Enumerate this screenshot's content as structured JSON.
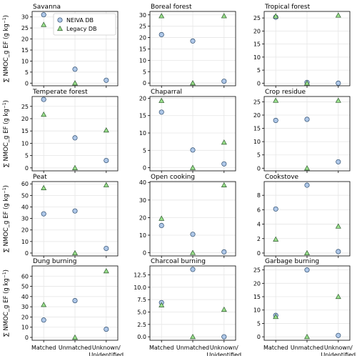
{
  "figure": {
    "ylabel_left": "∑ NMOC_g EF (g kg",
    "ylabel_sup": "−1",
    "ylabel_right": ")",
    "legend": [
      {
        "label": "NEIVA DB",
        "marker": "circle",
        "color": "#aec7e8"
      },
      {
        "label": "Legacy DB",
        "marker": "triangle",
        "color": "#98df8a"
      }
    ],
    "x_tick_labels": [
      "Matched",
      "Unmatched",
      "Unknown/\nUnidentified"
    ]
  },
  "chart_data": [
    {
      "type": "scatter",
      "title": "Savanna",
      "categories": [
        "Matched",
        "Unmatched",
        "Unknown/\nUnidentified"
      ],
      "ylim": [
        -1.2,
        32.5
      ],
      "yticks": [
        0,
        5,
        10,
        15,
        20,
        25,
        30
      ],
      "series": [
        {
          "name": "NEIVA DB",
          "values": [
            31.0,
            6.3,
            1.3
          ]
        },
        {
          "name": "Legacy DB",
          "values": [
            26.5,
            0,
            null
          ]
        }
      ],
      "grid": true
    },
    {
      "type": "scatter",
      "title": "Boreal forest",
      "categories": [
        "Matched",
        "Unmatched",
        "Unknown/\nUnidentified"
      ],
      "ylim": [
        -1.2,
        31.5
      ],
      "yticks": [
        0,
        5,
        10,
        15,
        20,
        25,
        30
      ],
      "series": [
        {
          "name": "NEIVA DB",
          "values": [
            21.3,
            18.5,
            0.8
          ]
        },
        {
          "name": "Legacy DB",
          "values": [
            29.5,
            0,
            29.5
          ]
        }
      ],
      "grid": true
    },
    {
      "type": "scatter",
      "title": "Tropical forest",
      "categories": [
        "Matched",
        "Unmatched",
        "Unknown/\nUnidentified"
      ],
      "ylim": [
        -1.0,
        27.5
      ],
      "yticks": [
        0,
        5,
        10,
        15,
        20,
        25
      ],
      "series": [
        {
          "name": "NEIVA DB",
          "values": [
            25.3,
            0.3,
            0
          ]
        },
        {
          "name": "Legacy DB",
          "values": [
            25.7,
            0,
            26
          ]
        }
      ],
      "grid": true
    },
    {
      "type": "scatter",
      "title": "Temperate forest",
      "categories": [
        "Matched",
        "Unmatched",
        "Unknown/\nUnidentified"
      ],
      "ylim": [
        -1.2,
        29.0
      ],
      "yticks": [
        0,
        5,
        10,
        15,
        20,
        25
      ],
      "series": [
        {
          "name": "NEIVA DB",
          "values": [
            27.8,
            12.2,
            3.0
          ]
        },
        {
          "name": "Legacy DB",
          "values": [
            21.7,
            0,
            15.3
          ]
        }
      ],
      "grid": true
    },
    {
      "type": "scatter",
      "title": "Chaparral",
      "categories": [
        "Matched",
        "Unmatched",
        "Unknown/\nUnidentified"
      ],
      "ylim": [
        -0.9,
        20.5
      ],
      "yticks": [
        0,
        5,
        10,
        15,
        20
      ],
      "series": [
        {
          "name": "NEIVA DB",
          "values": [
            16.0,
            5.1,
            1.1
          ]
        },
        {
          "name": "Legacy DB",
          "values": [
            19.3,
            0,
            7.3
          ]
        }
      ],
      "grid": true
    },
    {
      "type": "scatter",
      "title": "Crop residue",
      "categories": [
        "Matched",
        "Unmatched",
        "Unknown/\nUnidentified"
      ],
      "ylim": [
        -1.0,
        27.0
      ],
      "yticks": [
        0,
        5,
        10,
        15,
        20,
        25
      ],
      "series": [
        {
          "name": "NEIVA DB",
          "values": [
            18.0,
            18.4,
            2.4
          ]
        },
        {
          "name": "Legacy DB",
          "values": [
            25.5,
            0,
            25.5
          ]
        }
      ],
      "grid": true
    },
    {
      "type": "scatter",
      "title": "Peat",
      "categories": [
        "Matched",
        "Unmatched",
        "Unknown/\nUnidentified"
      ],
      "ylim": [
        -2.5,
        62.0
      ],
      "yticks": [
        0,
        10,
        20,
        30,
        40,
        50,
        60
      ],
      "series": [
        {
          "name": "NEIVA DB",
          "values": [
            34.0,
            36.5,
            4.0
          ]
        },
        {
          "name": "Legacy DB",
          "values": [
            56.5,
            0,
            59
          ]
        }
      ],
      "grid": true
    },
    {
      "type": "scatter",
      "title": "Open cooking",
      "categories": [
        "Matched",
        "Unmatched",
        "Unknown/\nUnidentified"
      ],
      "ylim": [
        -1.8,
        40.5
      ],
      "yticks": [
        0,
        10,
        20,
        30,
        40
      ],
      "series": [
        {
          "name": "NEIVA DB",
          "values": [
            15.5,
            10.5,
            0.5
          ]
        },
        {
          "name": "Legacy DB",
          "values": [
            19.5,
            0,
            38.5
          ]
        }
      ],
      "grid": true
    },
    {
      "type": "scatter",
      "title": "Cookstove",
      "categories": [
        "Matched",
        "Unmatched",
        "Unknown/\nUnidentified"
      ],
      "ylim": [
        -0.4,
        9.9
      ],
      "yticks": [
        0,
        2,
        4,
        6,
        8
      ],
      "series": [
        {
          "name": "NEIVA DB",
          "values": [
            6.1,
            9.4,
            0.2
          ]
        },
        {
          "name": "Legacy DB",
          "values": [
            1.9,
            0,
            3.7
          ]
        }
      ],
      "grid": true
    },
    {
      "type": "scatter",
      "title": "Dung burning",
      "categories": [
        "Matched",
        "Unmatched",
        "Unknown/\nUnidentified"
      ],
      "ylim": [
        -2.8,
        70.0
      ],
      "yticks": [
        0,
        10,
        20,
        30,
        40,
        50,
        60
      ],
      "series": [
        {
          "name": "NEIVA DB",
          "values": [
            17.0,
            36.0,
            8.0
          ]
        },
        {
          "name": "Legacy DB",
          "values": [
            32.0,
            0,
            65
          ]
        }
      ],
      "grid": true
    },
    {
      "type": "scatter",
      "title": "Charcoal burning",
      "categories": [
        "Matched",
        "Unmatched",
        "Unknown/\nUnidentified"
      ],
      "ylim": [
        -0.7,
        14.3
      ],
      "yticks": [
        0.0,
        2.5,
        5.0,
        7.5,
        10.0,
        12.5
      ],
      "series": [
        {
          "name": "NEIVA DB",
          "values": [
            6.9,
            13.6,
            0
          ]
        },
        {
          "name": "Legacy DB",
          "values": [
            6.4,
            0,
            5.5
          ]
        }
      ],
      "grid": true
    },
    {
      "type": "scatter",
      "title": "Garbage burning",
      "categories": [
        "Matched",
        "Unmatched",
        "Unknown/\nUnidentified"
      ],
      "ylim": [
        -1.3,
        26.5
      ],
      "yticks": [
        0,
        5,
        10,
        15,
        20,
        25
      ],
      "series": [
        {
          "name": "NEIVA DB",
          "values": [
            8.0,
            25.0,
            0.5
          ]
        },
        {
          "name": "Legacy DB",
          "values": [
            7.5,
            0,
            15
          ]
        }
      ],
      "grid": true
    }
  ]
}
